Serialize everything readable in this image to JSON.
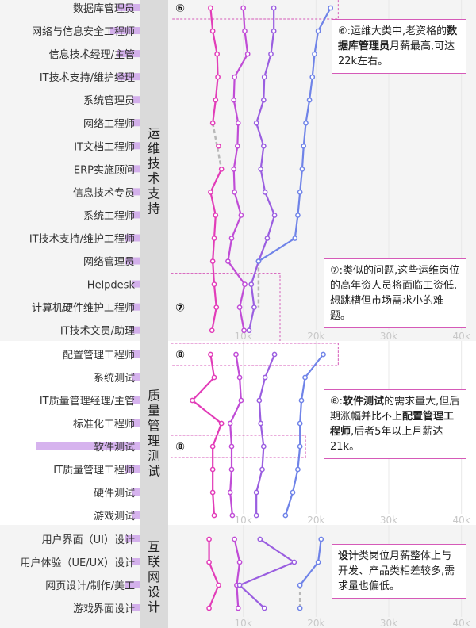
{
  "chart_data": [
    {
      "type": "line",
      "group_label": "运维技术支持",
      "categories": [
        "数据库管理员",
        "网络与信息安全工程师",
        "信息技术经理/主管",
        "IT技术支持/维护经理",
        "系统管理员",
        "网络工程师",
        "IT文档工程师",
        "ERP实施顾问",
        "信息技术专员",
        "系统工程师",
        "IT技术支持/维护工程师",
        "网络管理员",
        "Helpdesk",
        "计算机硬件维护工程师",
        "IT技术文员/助理"
      ],
      "demand": [
        3,
        4,
        3,
        3,
        1,
        1,
        1,
        1,
        1,
        1,
        2,
        2,
        1,
        1,
        1
      ],
      "series": [
        {
          "values": [
            5.5,
            5.8,
            6.4,
            6.5,
            6.2,
            5.8,
            6.6,
            7.0,
            5.5,
            6.2,
            6.0,
            5.8,
            6.0,
            6.3,
            5.7
          ]
        },
        {
          "values": [
            10.0,
            10.2,
            10.6,
            8.8,
            8.7,
            9.3,
            9.2,
            8.7,
            8.8,
            9.7,
            8.4,
            7.9,
            10.2,
            9.5,
            10.1
          ]
        },
        {
          "values": [
            14.2,
            14.2,
            13.8,
            12.9,
            12.8,
            11.8,
            12.8,
            12.4,
            13.0,
            14.3,
            13.3,
            12.1,
            11.1,
            11.5,
            10.8
          ]
        },
        {
          "values": [
            22.0,
            20.3,
            19.8,
            19.5,
            19.1,
            18.6,
            18.3,
            18.1,
            17.8,
            17.5,
            17.1,
            12.1,
            null,
            null,
            null
          ]
        }
      ],
      "dashed_segments": [
        {
          "series": 0,
          "from": 5,
          "to": 7
        },
        {
          "series": 3,
          "from": 11,
          "to": 13
        }
      ],
      "highlights": [
        {
          "label": "⑥",
          "from": 0,
          "to": 0,
          "x_range": [
            0,
            23
          ]
        },
        {
          "label": "⑦",
          "from": 12,
          "to": 14,
          "x_range": [
            0,
            15
          ]
        }
      ],
      "xlim": [
        0,
        42
      ],
      "xticks": [
        "10k",
        "20k",
        "30k",
        "40k"
      ]
    },
    {
      "type": "line",
      "group_label": "质量管理测试",
      "categories": [
        "配置管理工程师",
        "系统测试",
        "IT质量管理经理/主管",
        "标准化工程师",
        "软件测试",
        "IT质量管理工程师",
        "硬件测试",
        "游戏测试"
      ],
      "demand": [
        1,
        1,
        1,
        1,
        14,
        2,
        1,
        1
      ],
      "series": [
        {
          "values": [
            5.5,
            6.0,
            3.0,
            7.0,
            5.8,
            5.8,
            5.8,
            6.0
          ]
        },
        {
          "values": [
            9.0,
            9.5,
            9.7,
            8.2,
            8.4,
            8.4,
            8.2,
            8.5
          ]
        },
        {
          "values": [
            14.3,
            13.0,
            12.2,
            12.4,
            12.8,
            12.6,
            11.8,
            11.8
          ]
        },
        {
          "values": [
            21.0,
            18.5,
            18.0,
            17.8,
            17.8,
            17.5,
            16.8,
            15.8
          ]
        }
      ],
      "dashed_segments": [],
      "highlights": [
        {
          "label": "⑧",
          "from": 0,
          "to": 0,
          "x_range": [
            0,
            23
          ]
        },
        {
          "label": "⑧",
          "from": 4,
          "to": 4,
          "x_range": [
            0,
            18.5
          ]
        }
      ],
      "xlim": [
        0,
        42
      ],
      "xticks": [
        "10k",
        "20k",
        "30k",
        "40k"
      ]
    },
    {
      "type": "line",
      "group_label": "互联网设计",
      "categories": [
        "用户界面（UI）设计",
        "用户体验（UE/UX）设计",
        "网页设计/制作/美工",
        "游戏界面设计"
      ],
      "demand": [
        2,
        1,
        2,
        1
      ],
      "series": [
        {
          "values": [
            5.3,
            5.3,
            6.6,
            5.3
          ]
        },
        {
          "values": [
            8.8,
            9.5,
            9.1,
            9.3
          ]
        },
        {
          "values": [
            12.3,
            17.0,
            9.5,
            12.9
          ]
        },
        {
          "values": [
            20.7,
            20.3,
            17.8,
            17.8
          ]
        }
      ],
      "dashed_segments": [
        {
          "series": 3,
          "from": 2,
          "to": 3
        }
      ],
      "highlights": [],
      "xlim": [
        0,
        42
      ],
      "xticks": [
        "10k",
        "20k",
        "30k",
        "40k"
      ]
    }
  ],
  "series_colors": [
    "#e23cb8",
    "#c04cd6",
    "#9a5ee0",
    "#6f83e8"
  ],
  "band_color": "#dadada",
  "box_color": "#d55ab8",
  "annotations": [
    {
      "parts": [
        {
          "t": "⑥:运维大类中,老资格的"
        },
        {
          "t": "数据库管理员",
          "b": true
        },
        {
          "t": "月薪最高,可达22k左右。"
        }
      ]
    },
    {
      "parts": [
        {
          "t": "⑦:类似的问题,这些运维岗位的高年资人员将面临工资低,想跳槽但市场需求小的难题。"
        }
      ]
    },
    {
      "parts": [
        {
          "t": "⑧:"
        },
        {
          "t": "软件测试",
          "b": true
        },
        {
          "t": "的需求量大,但后期涨幅并比不上"
        },
        {
          "t": "配置管理工程师",
          "b": true
        },
        {
          "t": ",后者5年以上月薪达21k。"
        }
      ]
    },
    {
      "parts": [
        {
          "t": "设计",
          "b": true
        },
        {
          "t": "类岗位月薪整体上与开发、产品类相差较多,需求量也偏低。"
        }
      ]
    }
  ]
}
